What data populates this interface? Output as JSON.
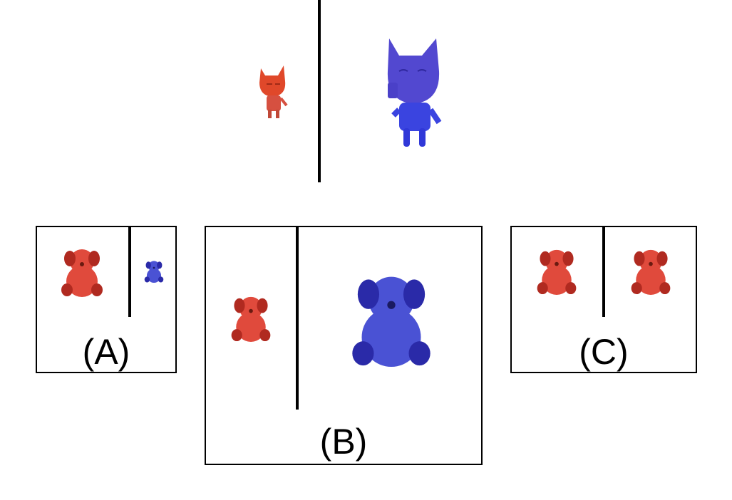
{
  "top_panel": {
    "left_figure": "cat-figure",
    "right_figure": "cat-figure"
  },
  "options": [
    {
      "label": "(A)"
    },
    {
      "label": "(B)"
    },
    {
      "label": "(C)"
    }
  ],
  "colors": {
    "red_cat": "#e0482a",
    "red_cat_body": "#d65040",
    "blue_cat": "#5248d0",
    "blue_cat_body": "#3a44e0",
    "red_bear": "#e04a3c",
    "red_bear_dark": "#b02a20",
    "blue_bear": "#4a52d4",
    "blue_bear_dark": "#2a2aa8",
    "line": "#000000"
  }
}
